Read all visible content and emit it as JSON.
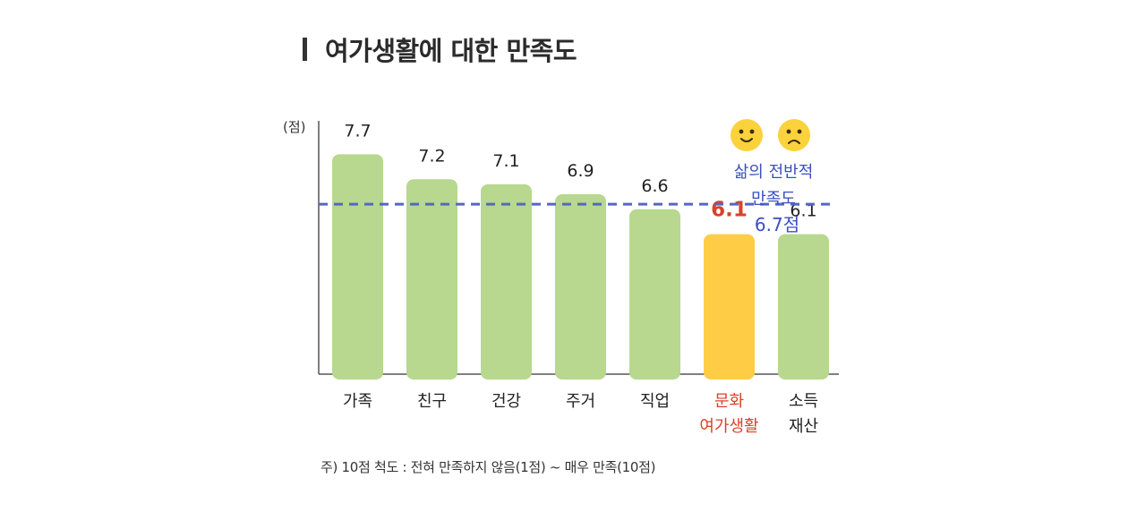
{
  "title": "여가생활에 대한 만족도",
  "unit_label": "(점)",
  "footnote": "주) 10점 척도 : 전혀 만족하지 않음(1점) ~ 매우 만족(10점)",
  "colors": {
    "bar": "#b7d88e",
    "highlight_bar": "#ffcd45",
    "highlight_text": "#d8422b",
    "average_line": "#5567c0",
    "average_text": "#3a4fc0"
  },
  "chart_data": {
    "type": "bar",
    "categories": [
      "가족",
      "친구",
      "건강",
      "주거",
      "직업",
      "문화\n여가생활",
      "소득\n재산"
    ],
    "values": [
      7.7,
      7.2,
      7.1,
      6.9,
      6.6,
      6.1,
      6.1
    ],
    "highlight_index": 5,
    "ylim": [
      3.3,
      8.1
    ],
    "ylabel": "(점)",
    "grid": false,
    "average": {
      "value": 6.7,
      "label_lines": [
        "삶의 전반적",
        "만족도",
        "6.7점"
      ],
      "icons": [
        "smile-face-icon",
        "frown-face-icon"
      ]
    }
  }
}
